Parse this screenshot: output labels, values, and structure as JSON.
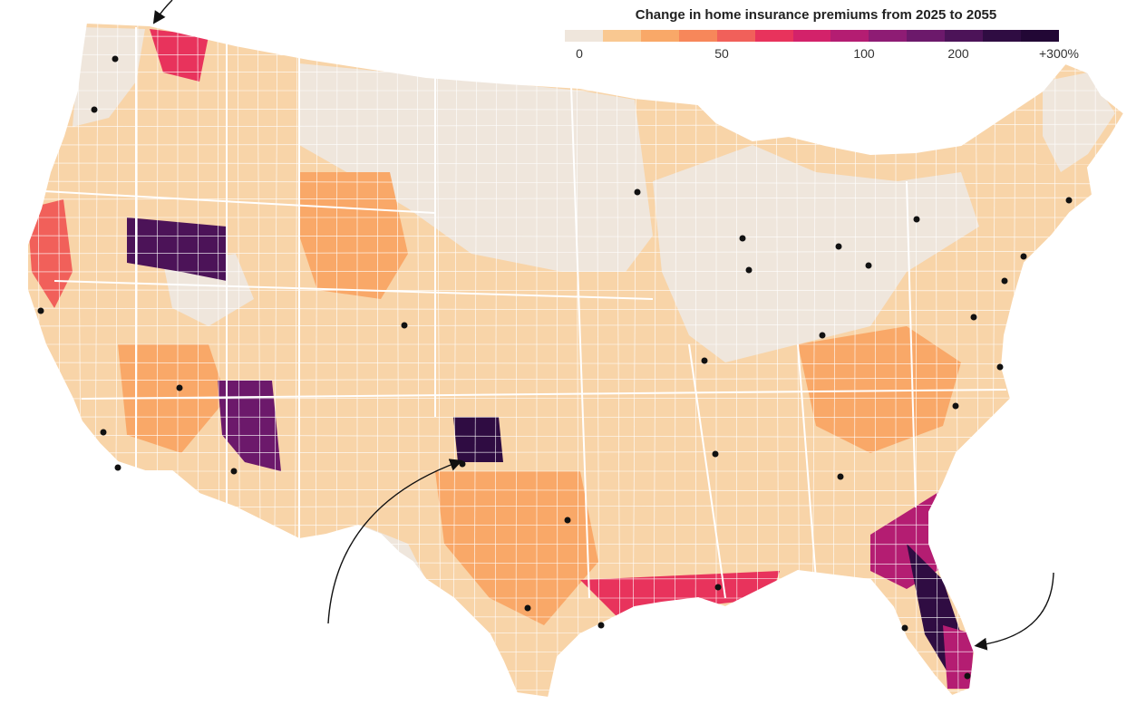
{
  "legend": {
    "title": "Change in home insurance premiums from 2025 to 2055",
    "ticks": [
      "0",
      "50",
      "100",
      "200",
      "+300%"
    ],
    "colors": [
      "#efe6dc",
      "#f9c891",
      "#f9a868",
      "#f7875a",
      "#f1605a",
      "#e8335c",
      "#d3226a",
      "#b41d72",
      "#8e1c74",
      "#6c196b",
      "#4c1358",
      "#2f0c42",
      "#220735"
    ]
  },
  "map": {
    "region": "contiguous-united-states",
    "land_fill": "#f8d4a8",
    "boundary_color": "#ffffff",
    "city_marker_color": "#111111"
  }
}
